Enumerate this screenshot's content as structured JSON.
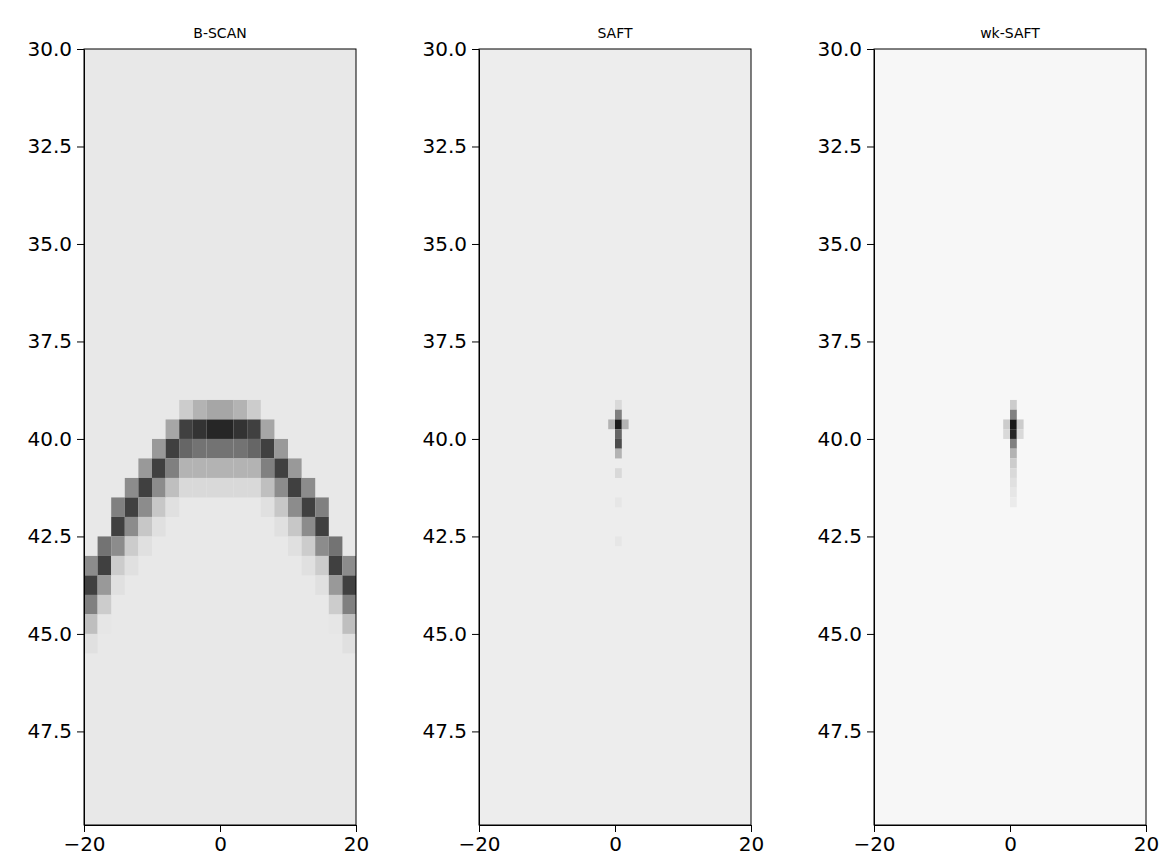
{
  "chart_data": [
    {
      "type": "heatmap",
      "title": "B-SCAN",
      "xlim": [
        -20,
        20
      ],
      "ylim": [
        49.9,
        30
      ],
      "xticks": [
        {
          "value": -20,
          "label": "−20"
        },
        0,
        20
      ],
      "yticks": [
        {
          "value": 30,
          "label": "30.0"
        },
        32.5,
        {
          "value": 35,
          "label": "35.0"
        },
        37.5,
        {
          "value": 40,
          "label": "40.0"
        },
        42.5,
        {
          "value": 45,
          "label": "45.0"
        },
        47.5
      ],
      "zlim": [
        0,
        1
      ],
      "background": 0.09,
      "cell_size": [
        2,
        0.5
      ],
      "cells": [
        [
          -19,
          43.25,
          0.45
        ],
        [
          -19,
          43.75,
          0.75
        ],
        [
          -19,
          44.25,
          0.5
        ],
        [
          -19,
          44.75,
          0.25
        ],
        [
          -19,
          45.25,
          0.12
        ],
        [
          -17,
          42.75,
          0.55
        ],
        [
          -17,
          43.25,
          0.75
        ],
        [
          -17,
          43.75,
          0.4
        ],
        [
          -17,
          44.25,
          0.2
        ],
        [
          -17,
          44.75,
          0.1
        ],
        [
          -15,
          41.75,
          0.5
        ],
        [
          -15,
          42.25,
          0.75
        ],
        [
          -15,
          42.75,
          0.45
        ],
        [
          -15,
          43.25,
          0.2
        ],
        [
          -15,
          43.75,
          0.12
        ],
        [
          -13,
          41.25,
          0.45
        ],
        [
          -13,
          41.75,
          0.75
        ],
        [
          -13,
          42.25,
          0.45
        ],
        [
          -13,
          42.75,
          0.2
        ],
        [
          -13,
          43.25,
          0.12
        ],
        [
          -11,
          40.75,
          0.4
        ],
        [
          -11,
          41.25,
          0.75
        ],
        [
          -11,
          41.75,
          0.45
        ],
        [
          -11,
          42.25,
          0.22
        ],
        [
          -11,
          42.75,
          0.12
        ],
        [
          -9,
          40.25,
          0.4
        ],
        [
          -9,
          40.75,
          0.75
        ],
        [
          -9,
          41.25,
          0.45
        ],
        [
          -9,
          41.75,
          0.22
        ],
        [
          -9,
          42.25,
          0.12
        ],
        [
          -7,
          39.75,
          0.35
        ],
        [
          -7,
          40.25,
          0.75
        ],
        [
          -7,
          40.75,
          0.5
        ],
        [
          -7,
          41.25,
          0.25
        ],
        [
          -7,
          41.75,
          0.12
        ],
        [
          -5,
          39.25,
          0.2
        ],
        [
          -5,
          39.75,
          0.75
        ],
        [
          -5,
          40.25,
          0.6
        ],
        [
          -5,
          40.75,
          0.3
        ],
        [
          -5,
          41.25,
          0.15
        ],
        [
          -3,
          39.25,
          0.3
        ],
        [
          -3,
          39.75,
          0.8
        ],
        [
          -3,
          40.25,
          0.55
        ],
        [
          -3,
          40.75,
          0.3
        ],
        [
          -3,
          41.25,
          0.15
        ],
        [
          -1,
          39.25,
          0.35
        ],
        [
          -1,
          39.75,
          0.85
        ],
        [
          -1,
          40.25,
          0.55
        ],
        [
          -1,
          40.75,
          0.3
        ],
        [
          -1,
          41.25,
          0.15
        ],
        [
          1,
          39.25,
          0.35
        ],
        [
          1,
          39.75,
          0.85
        ],
        [
          1,
          40.25,
          0.55
        ],
        [
          1,
          40.75,
          0.3
        ],
        [
          1,
          41.25,
          0.15
        ],
        [
          3,
          39.25,
          0.3
        ],
        [
          3,
          39.75,
          0.8
        ],
        [
          3,
          40.25,
          0.55
        ],
        [
          3,
          40.75,
          0.3
        ],
        [
          3,
          41.25,
          0.15
        ],
        [
          5,
          39.25,
          0.2
        ],
        [
          5,
          39.75,
          0.75
        ],
        [
          5,
          40.25,
          0.6
        ],
        [
          5,
          40.75,
          0.3
        ],
        [
          5,
          41.25,
          0.15
        ],
        [
          7,
          39.75,
          0.35
        ],
        [
          7,
          40.25,
          0.75
        ],
        [
          7,
          40.75,
          0.5
        ],
        [
          7,
          41.25,
          0.25
        ],
        [
          7,
          41.75,
          0.12
        ],
        [
          9,
          40.25,
          0.4
        ],
        [
          9,
          40.75,
          0.75
        ],
        [
          9,
          41.25,
          0.45
        ],
        [
          9,
          41.75,
          0.22
        ],
        [
          9,
          42.25,
          0.12
        ],
        [
          11,
          40.75,
          0.4
        ],
        [
          11,
          41.25,
          0.75
        ],
        [
          11,
          41.75,
          0.45
        ],
        [
          11,
          42.25,
          0.22
        ],
        [
          11,
          42.75,
          0.12
        ],
        [
          13,
          41.25,
          0.45
        ],
        [
          13,
          41.75,
          0.75
        ],
        [
          13,
          42.25,
          0.45
        ],
        [
          13,
          42.75,
          0.2
        ],
        [
          13,
          43.25,
          0.12
        ],
        [
          15,
          41.75,
          0.5
        ],
        [
          15,
          42.25,
          0.75
        ],
        [
          15,
          42.75,
          0.45
        ],
        [
          15,
          43.25,
          0.2
        ],
        [
          15,
          43.75,
          0.12
        ],
        [
          17,
          42.75,
          0.55
        ],
        [
          17,
          43.25,
          0.75
        ],
        [
          17,
          43.75,
          0.4
        ],
        [
          17,
          44.25,
          0.2
        ],
        [
          17,
          44.75,
          0.1
        ],
        [
          19,
          43.25,
          0.45
        ],
        [
          19,
          43.75,
          0.75
        ],
        [
          19,
          44.25,
          0.5
        ],
        [
          19,
          44.75,
          0.25
        ],
        [
          19,
          45.25,
          0.12
        ]
      ]
    },
    {
      "type": "heatmap",
      "title": "SAFT",
      "xlim": [
        -20,
        20
      ],
      "ylim": [
        49.9,
        30
      ],
      "xticks": [
        {
          "value": -20,
          "label": "−20"
        },
        0,
        20
      ],
      "yticks": [
        {
          "value": 30,
          "label": "30.0"
        },
        32.5,
        {
          "value": 35,
          "label": "35.0"
        },
        37.5,
        {
          "value": 40,
          "label": "40.0"
        },
        42.5,
        {
          "value": 45,
          "label": "45.0"
        },
        47.5
      ],
      "zlim": [
        0,
        1
      ],
      "background": 0.07,
      "cell_size": [
        1,
        0.25
      ],
      "cells": [
        [
          0.5,
          39.125,
          0.15
        ],
        [
          0.5,
          39.375,
          0.5
        ],
        [
          0.5,
          39.625,
          0.9
        ],
        [
          0.5,
          39.875,
          0.6
        ],
        [
          0.5,
          40.125,
          0.7
        ],
        [
          0.5,
          40.375,
          0.3
        ],
        [
          0.5,
          40.875,
          0.15
        ],
        [
          0.5,
          41.625,
          0.1
        ],
        [
          0.5,
          42.625,
          0.1
        ],
        [
          -0.5,
          39.625,
          0.3
        ],
        [
          1.5,
          39.625,
          0.3
        ]
      ]
    },
    {
      "type": "heatmap",
      "title": "wk-SAFT",
      "xlim": [
        -20,
        20
      ],
      "ylim": [
        49.9,
        30
      ],
      "xticks": [
        {
          "value": -20,
          "label": "−20"
        },
        0,
        20
      ],
      "yticks": [
        {
          "value": 30,
          "label": "30.0"
        },
        32.5,
        {
          "value": 35,
          "label": "35.0"
        },
        37.5,
        {
          "value": 40,
          "label": "40.0"
        },
        42.5,
        {
          "value": 45,
          "label": "45.0"
        },
        47.5
      ],
      "zlim": [
        0,
        1
      ],
      "background": 0.03,
      "cell_size": [
        1,
        0.25
      ],
      "cells": [
        [
          0.5,
          39.125,
          0.2
        ],
        [
          0.5,
          39.375,
          0.5
        ],
        [
          0.5,
          39.625,
          0.9
        ],
        [
          0.5,
          39.875,
          0.85
        ],
        [
          0.5,
          40.125,
          0.5
        ],
        [
          0.5,
          40.375,
          0.3
        ],
        [
          0.5,
          40.625,
          0.2
        ],
        [
          0.5,
          40.875,
          0.15
        ],
        [
          0.5,
          41.125,
          0.12
        ],
        [
          0.5,
          41.375,
          0.1
        ],
        [
          0.5,
          41.625,
          0.08
        ],
        [
          -0.5,
          39.625,
          0.2
        ],
        [
          1.5,
          39.625,
          0.2
        ],
        [
          -0.5,
          39.875,
          0.15
        ],
        [
          1.5,
          39.875,
          0.15
        ]
      ]
    }
  ]
}
